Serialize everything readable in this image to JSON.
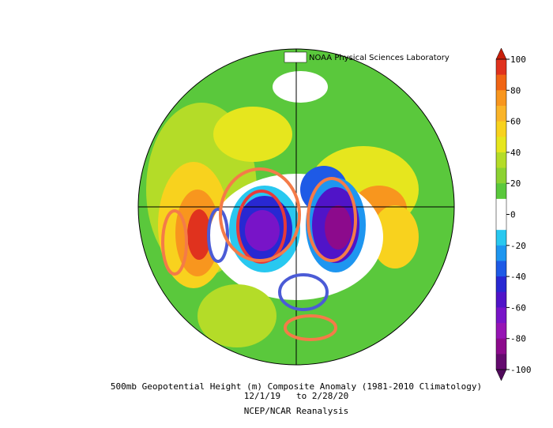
{
  "header": {
    "credit": "NOAA Physical Sciences Laboratory"
  },
  "footer": {
    "title": "500mb Geopotential Height (m) Composite Anomaly (1981-2010 Climatology)",
    "dates": "12/1/19   to 2/28/20",
    "source": "NCEP/NCAR Reanalysis"
  },
  "colorbar": {
    "ticks": [
      -100,
      -80,
      -60,
      -40,
      -20,
      0,
      20,
      40,
      60,
      80,
      100
    ],
    "colors": [
      "#e0321e",
      "#f06414",
      "#f8961e",
      "#fab428",
      "#f8d21e",
      "#e6e61e",
      "#b4dc28",
      "#8cd232",
      "#5ac83c",
      "#ffffff",
      "#ffffff",
      "#28c8f0",
      "#1e96f0",
      "#1e5ae6",
      "#2828d2",
      "#5014c8",
      "#7814c8",
      "#9614b4",
      "#8c0a8c",
      "#640a6e"
    ],
    "over_color": "#c81e0a",
    "under_color": "#500a5a"
  }
}
